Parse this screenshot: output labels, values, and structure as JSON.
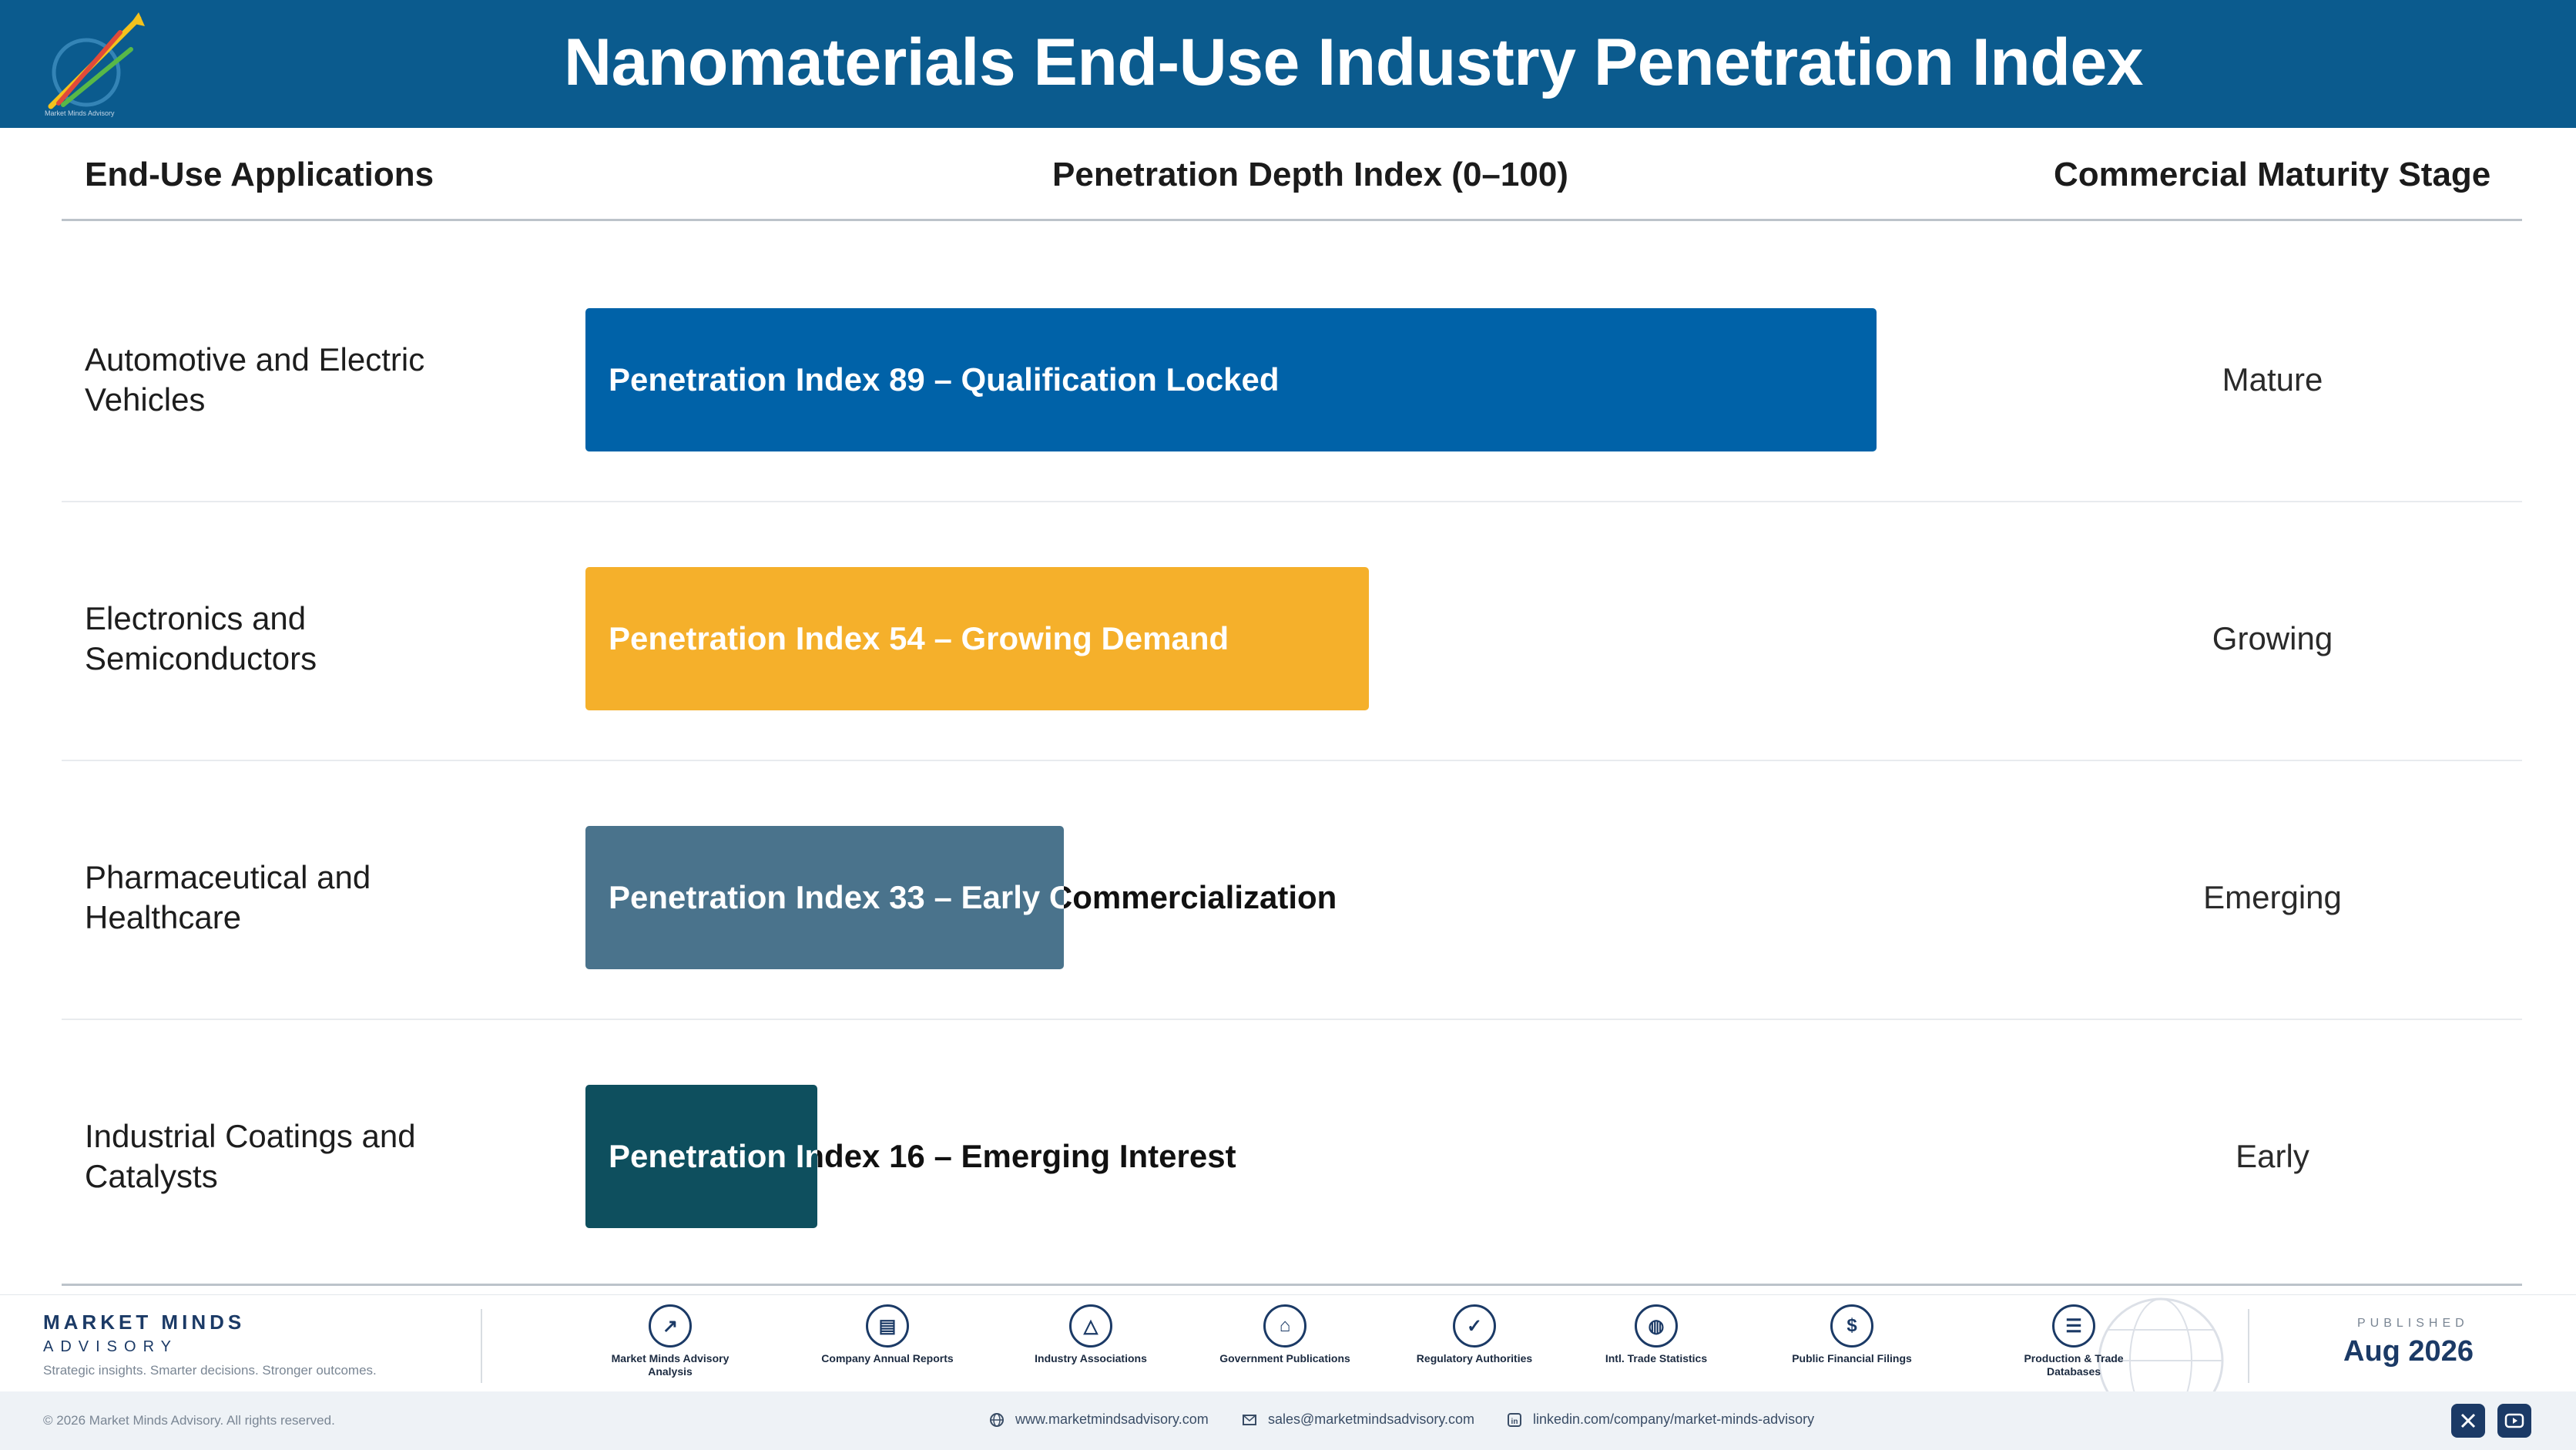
{
  "header": {
    "title": "Nanomaterials End-Use Industry Penetration Index",
    "logo_text": "Market Minds Advisory"
  },
  "columns": {
    "applications": "End-Use Applications",
    "index": "Penetration Depth Index (0–100)",
    "stage": "Commercial Maturity Stage"
  },
  "chart_data": {
    "type": "bar",
    "orientation": "horizontal",
    "title": "Nanomaterials End-Use Industry Penetration Index",
    "xlabel": "Penetration Depth Index (0–100)",
    "xlim": [
      0,
      100
    ],
    "grid": false,
    "legend": "none",
    "categories": [
      "Automotive and Electric Vehicles",
      "Electronics and Semiconductors",
      "Pharmaceutical and Healthcare",
      "Industrial Coatings and Catalysts"
    ],
    "values": [
      89,
      54,
      33,
      16
    ],
    "bar_labels": [
      "Penetration Index 89 – Qualification Locked",
      "Penetration Index 54 – Growing Demand",
      "Penetration Index 33 – Early Commercialization",
      "Penetration Index 16 – Emerging Interest"
    ],
    "stages": [
      "Mature",
      "Growing",
      "Emerging",
      "Early"
    ],
    "colors": [
      "#0062a8",
      "#f5b02b",
      "#4a738c",
      "#0e4f5e"
    ]
  },
  "footer": {
    "brand_name": "MARKET MINDS",
    "brand_sub": "ADVISORY",
    "brand_tag": "Strategic insights. Smarter decisions. Stronger outcomes.",
    "sources": [
      {
        "label": "Market Minds Advisory Analysis",
        "icon": "trend-chart-icon"
      },
      {
        "label": "Company Annual Reports",
        "icon": "document-icon"
      },
      {
        "label": "Industry Associations",
        "icon": "network-icon"
      },
      {
        "label": "Government Publications",
        "icon": "government-building-icon"
      },
      {
        "label": "Regulatory Authorities",
        "icon": "shield-check-icon"
      },
      {
        "label": "Intl. Trade Statistics",
        "icon": "globe-icon"
      },
      {
        "label": "Public Financial Filings",
        "icon": "dollar-coin-icon"
      },
      {
        "label": "Production & Trade Databases",
        "icon": "database-icon"
      }
    ],
    "published_label": "PUBLISHED",
    "published_date": "Aug 2026",
    "copyright": "© 2026 Market Minds Advisory. All rights reserved.",
    "website": "www.marketmindsadvisory.com",
    "email": "sales@marketmindsadvisory.com",
    "linkedin": "linkedin.com/company/market-minds-advisory"
  }
}
